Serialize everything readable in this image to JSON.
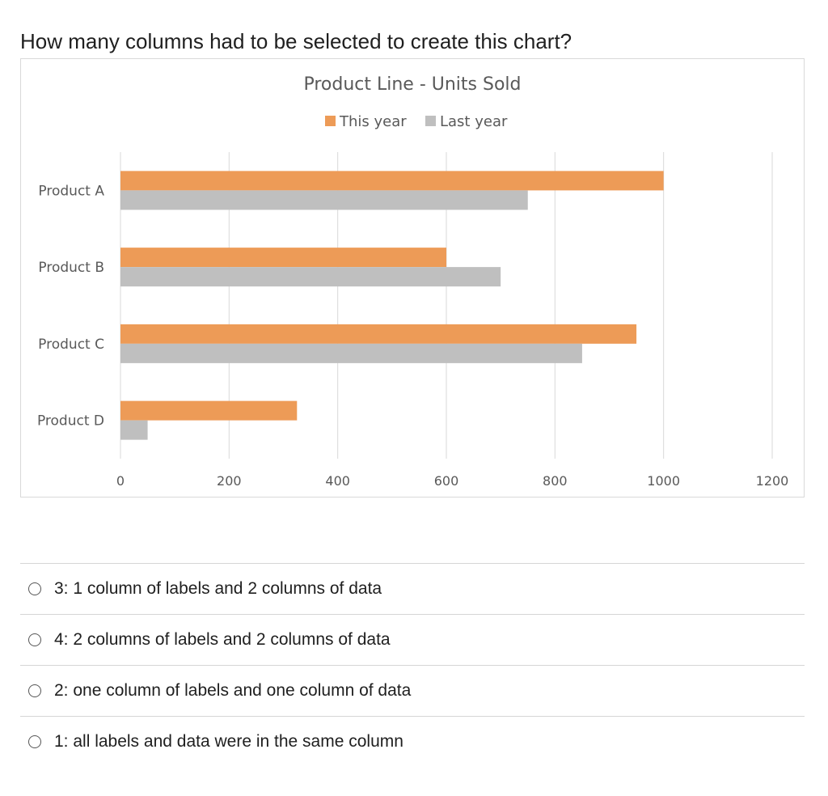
{
  "question": "How many columns had to be selected to create this chart?",
  "colors": {
    "this_year": "#ed9b57",
    "last_year": "#bfbfbf"
  },
  "chart_data": {
    "type": "bar",
    "orientation": "horizontal",
    "title": "Product Line - Units Sold",
    "categories": [
      "Product A",
      "Product B",
      "Product C",
      "Product D"
    ],
    "series": [
      {
        "name": "This year",
        "values": [
          1000,
          600,
          950,
          325
        ]
      },
      {
        "name": "Last year",
        "values": [
          750,
          700,
          850,
          50
        ]
      }
    ],
    "xlim": [
      0,
      1200
    ],
    "xticks": [
      "0",
      "200",
      "400",
      "600",
      "800",
      "1000",
      "1200"
    ],
    "grid": true,
    "legend": "top-center"
  },
  "options": [
    {
      "label": "3: 1 column of labels and 2 columns of data"
    },
    {
      "label": "4: 2 columns of labels and 2 columns of data"
    },
    {
      "label": "2: one column of labels and one column of data"
    },
    {
      "label": "1: all labels and data were in the same column"
    }
  ]
}
